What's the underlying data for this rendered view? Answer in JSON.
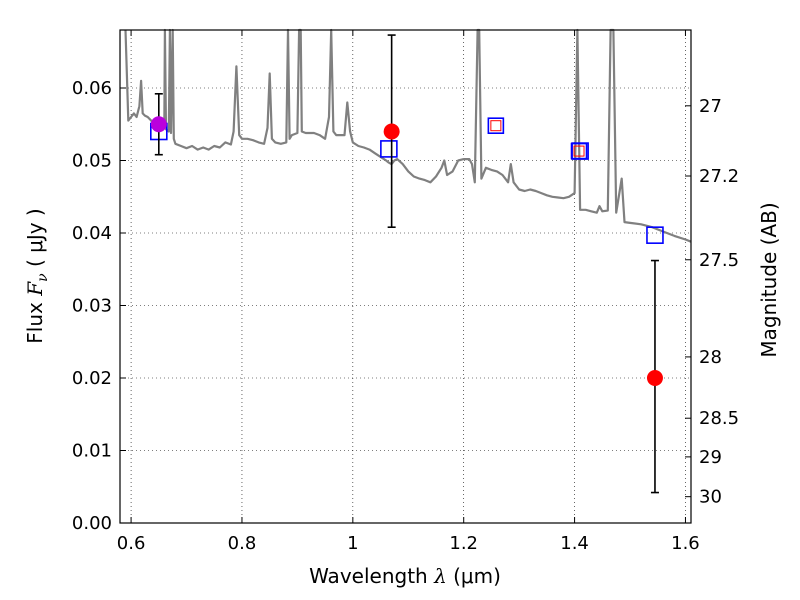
{
  "chart_data": {
    "type": "scatter",
    "xlabel": {
      "prefix": "Wavelength  ",
      "symbol": "λ",
      "unit": " (μm)"
    },
    "ylabel": {
      "prefix": "Flux  ",
      "symbol": "F",
      "subscript": "ν",
      "unit": "  ( μJy )"
    },
    "ylabel_right": "Magnitude (AB)",
    "xlim": [
      0.58,
      1.61
    ],
    "ylim": [
      0.0,
      0.068
    ],
    "grid": true,
    "x_ticks": [
      {
        "value": 0.6,
        "label": "0.6"
      },
      {
        "value": 0.8,
        "label": "0.8"
      },
      {
        "value": 1.0,
        "label": "1"
      },
      {
        "value": 1.2,
        "label": "1.2"
      },
      {
        "value": 1.4,
        "label": "1.4"
      },
      {
        "value": 1.6,
        "label": "1.6"
      }
    ],
    "y_ticks": [
      {
        "value": 0.0,
        "label": "0.00"
      },
      {
        "value": 0.01,
        "label": "0.01"
      },
      {
        "value": 0.02,
        "label": "0.02"
      },
      {
        "value": 0.03,
        "label": "0.03"
      },
      {
        "value": 0.04,
        "label": "0.04"
      },
      {
        "value": 0.05,
        "label": "0.05"
      },
      {
        "value": 0.06,
        "label": "0.06"
      }
    ],
    "right_ticks": [
      {
        "label": "27",
        "mag": 27.0
      },
      {
        "label": "27.2",
        "mag": 27.2
      },
      {
        "label": "27.5",
        "mag": 27.5
      },
      {
        "label": "28",
        "mag": 28.0
      },
      {
        "label": "28.5",
        "mag": 28.5
      },
      {
        "label": "29",
        "mag": 29.0
      },
      {
        "label": "30",
        "mag": 30.0
      }
    ],
    "series": [
      {
        "kind": "model_spectrum",
        "color": "#808080",
        "points": [
          [
            0.59,
            0.068
          ],
          [
            0.595,
            0.0555
          ],
          [
            0.6,
            0.056
          ],
          [
            0.605,
            0.0565
          ],
          [
            0.61,
            0.056
          ],
          [
            0.615,
            0.0575
          ],
          [
            0.618,
            0.061
          ],
          [
            0.621,
            0.0565
          ],
          [
            0.625,
            0.0562
          ],
          [
            0.63,
            0.056
          ],
          [
            0.635,
            0.0556
          ],
          [
            0.64,
            0.0552
          ],
          [
            0.645,
            0.055
          ],
          [
            0.65,
            0.0548
          ],
          [
            0.655,
            0.0545
          ],
          [
            0.66,
            0.0545
          ],
          [
            0.661,
            0.068
          ],
          [
            0.663,
            0.0543
          ],
          [
            0.668,
            0.054
          ],
          [
            0.67,
            0.068
          ],
          [
            0.672,
            0.0538
          ],
          [
            0.675,
            0.068
          ],
          [
            0.677,
            0.053
          ],
          [
            0.68,
            0.0523
          ],
          [
            0.69,
            0.052
          ],
          [
            0.7,
            0.0517
          ],
          [
            0.71,
            0.052
          ],
          [
            0.72,
            0.0515
          ],
          [
            0.73,
            0.0518
          ],
          [
            0.74,
            0.0515
          ],
          [
            0.75,
            0.052
          ],
          [
            0.76,
            0.0518
          ],
          [
            0.77,
            0.0525
          ],
          [
            0.78,
            0.0522
          ],
          [
            0.785,
            0.054
          ],
          [
            0.79,
            0.063
          ],
          [
            0.795,
            0.0535
          ],
          [
            0.8,
            0.053
          ],
          [
            0.81,
            0.053
          ],
          [
            0.82,
            0.0528
          ],
          [
            0.83,
            0.0525
          ],
          [
            0.84,
            0.0523
          ],
          [
            0.846,
            0.0545
          ],
          [
            0.85,
            0.062
          ],
          [
            0.854,
            0.053
          ],
          [
            0.86,
            0.0525
          ],
          [
            0.87,
            0.0523
          ],
          [
            0.88,
            0.0525
          ],
          [
            0.883,
            0.068
          ],
          [
            0.886,
            0.053
          ],
          [
            0.89,
            0.0535
          ],
          [
            0.9,
            0.0538
          ],
          [
            0.903,
            0.068
          ],
          [
            0.906,
            0.068
          ],
          [
            0.908,
            0.054
          ],
          [
            0.915,
            0.0538
          ],
          [
            0.93,
            0.0538
          ],
          [
            0.94,
            0.0535
          ],
          [
            0.95,
            0.053
          ],
          [
            0.957,
            0.056
          ],
          [
            0.961,
            0.068
          ],
          [
            0.965,
            0.054
          ],
          [
            0.97,
            0.0535
          ],
          [
            0.985,
            0.0535
          ],
          [
            0.99,
            0.058
          ],
          [
            0.995,
            0.054
          ],
          [
            1.0,
            0.0525
          ],
          [
            1.01,
            0.052
          ],
          [
            1.02,
            0.0518
          ],
          [
            1.03,
            0.0515
          ],
          [
            1.04,
            0.051
          ],
          [
            1.05,
            0.0505
          ],
          [
            1.06,
            0.05
          ],
          [
            1.065,
            0.0497
          ],
          [
            1.07,
            0.0495
          ],
          [
            1.075,
            0.05
          ],
          [
            1.08,
            0.0502
          ],
          [
            1.09,
            0.0495
          ],
          [
            1.1,
            0.0485
          ],
          [
            1.11,
            0.0478
          ],
          [
            1.12,
            0.0475
          ],
          [
            1.13,
            0.0473
          ],
          [
            1.14,
            0.047
          ],
          [
            1.15,
            0.0478
          ],
          [
            1.16,
            0.049
          ],
          [
            1.165,
            0.05
          ],
          [
            1.17,
            0.048
          ],
          [
            1.18,
            0.0485
          ],
          [
            1.19,
            0.05
          ],
          [
            1.2,
            0.0502
          ],
          [
            1.21,
            0.0502
          ],
          [
            1.215,
            0.0495
          ],
          [
            1.22,
            0.047
          ],
          [
            1.225,
            0.068
          ],
          [
            1.228,
            0.068
          ],
          [
            1.232,
            0.0475
          ],
          [
            1.24,
            0.049
          ],
          [
            1.25,
            0.0487
          ],
          [
            1.26,
            0.0485
          ],
          [
            1.27,
            0.048
          ],
          [
            1.28,
            0.047
          ],
          [
            1.285,
            0.0495
          ],
          [
            1.29,
            0.047
          ],
          [
            1.3,
            0.046
          ],
          [
            1.31,
            0.0458
          ],
          [
            1.32,
            0.046
          ],
          [
            1.33,
            0.0458
          ],
          [
            1.34,
            0.0455
          ],
          [
            1.35,
            0.0452
          ],
          [
            1.36,
            0.045
          ],
          [
            1.37,
            0.0449
          ],
          [
            1.38,
            0.0448
          ],
          [
            1.39,
            0.045
          ],
          [
            1.4,
            0.0455
          ],
          [
            1.405,
            0.068
          ],
          [
            1.41,
            0.0432
          ],
          [
            1.42,
            0.0432
          ],
          [
            1.43,
            0.043
          ],
          [
            1.44,
            0.0428
          ],
          [
            1.445,
            0.0437
          ],
          [
            1.45,
            0.043
          ],
          [
            1.46,
            0.0431
          ],
          [
            1.465,
            0.068
          ],
          [
            1.47,
            0.068
          ],
          [
            1.475,
            0.0428
          ],
          [
            1.485,
            0.0475
          ],
          [
            1.49,
            0.0415
          ],
          [
            1.5,
            0.0414
          ],
          [
            1.52,
            0.0412
          ],
          [
            1.54,
            0.0408
          ],
          [
            1.56,
            0.0402
          ],
          [
            1.58,
            0.0396
          ],
          [
            1.6,
            0.0391
          ],
          [
            1.61,
            0.0388
          ]
        ]
      },
      {
        "kind": "model_photometry",
        "color": "#0000ff",
        "marker": "square-open",
        "points": [
          {
            "x": 0.65,
            "y": 0.054
          },
          {
            "x": 1.065,
            "y": 0.0516
          },
          {
            "x": 1.41,
            "y": 0.0513
          },
          {
            "x": 1.545,
            "y": 0.0397
          }
        ]
      },
      {
        "kind": "upper_limit_photometry",
        "marker": "square-open",
        "color": "#0000ff",
        "inner_color": "#ff0000",
        "points": [
          {
            "x": 1.258,
            "y": 0.0548
          },
          {
            "x": 1.408,
            "y": 0.0513
          }
        ]
      },
      {
        "kind": "observed_photometry",
        "color": "#ff0000",
        "marker": "circle-filled",
        "points": [
          {
            "x": 0.65,
            "y": 0.055,
            "err_low": 0.0508,
            "err_high": 0.0592,
            "color": "#bb00dd"
          },
          {
            "x": 1.07,
            "y": 0.054,
            "err_low": 0.0408,
            "err_high": 0.0673
          },
          {
            "x": 1.545,
            "y": 0.02,
            "err_low": 0.0042,
            "err_high": 0.0362
          }
        ]
      }
    ]
  }
}
